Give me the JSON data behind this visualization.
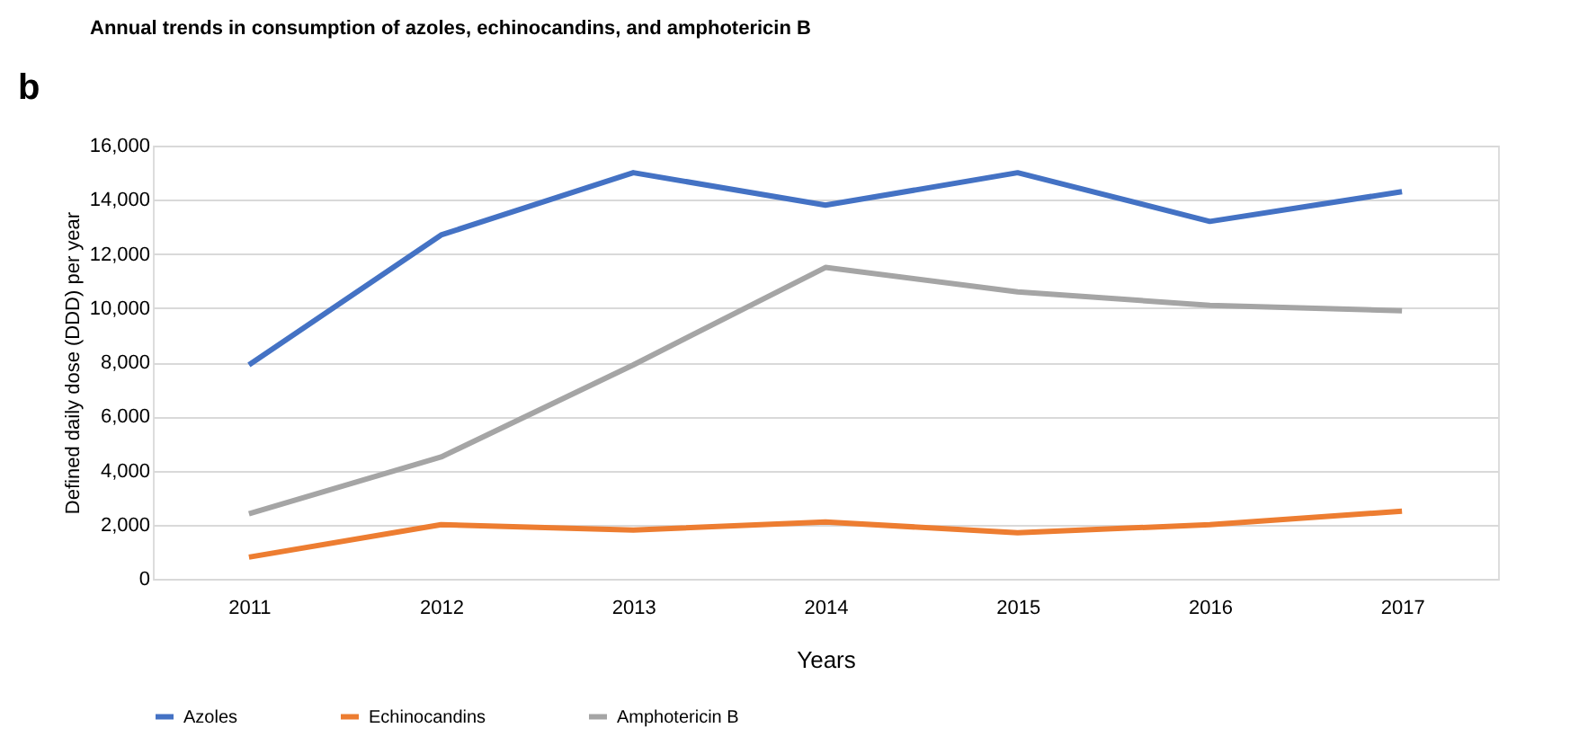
{
  "chart_data": {
    "type": "line",
    "title": "Annual trends in consumption of azoles, echinocandins, and amphotericin B",
    "xlabel": "Years",
    "ylabel": "Defined daily dose (DDD) per year",
    "categories": [
      "2011",
      "2012",
      "2013",
      "2014",
      "2015",
      "2016",
      "2017"
    ],
    "series": [
      {
        "name": "Azoles",
        "color": "#4472c4",
        "values": [
          7900,
          12700,
          15000,
          13800,
          15000,
          13200,
          14300
        ]
      },
      {
        "name": "Echinocandins",
        "color": "#ed7d31",
        "values": [
          800,
          2000,
          1800,
          2100,
          1700,
          2000,
          2500
        ]
      },
      {
        "name": "Amphotericin B",
        "color": "#a5a5a5",
        "values": [
          2400,
          4500,
          7900,
          11500,
          10600,
          10100,
          9900
        ]
      }
    ],
    "ylim": [
      0,
      16000
    ],
    "yticks": [
      0,
      {
        "value": 2000,
        "label": "2,000"
      },
      {
        "value": 4000,
        "label": "4,000"
      },
      {
        "value": 6000,
        "label": "6,000"
      },
      {
        "value": 8000,
        "label": "8,000"
      },
      {
        "value": 10000,
        "label": "10,000"
      },
      {
        "value": 12000,
        "label": "12,000"
      },
      {
        "value": 14000,
        "label": "14,000"
      },
      {
        "value": 16000,
        "label": "16,000"
      }
    ],
    "grid": "y",
    "legend": "bottom",
    "marker": "none",
    "line_style": "solid",
    "annotations": [
      "b"
    ]
  }
}
